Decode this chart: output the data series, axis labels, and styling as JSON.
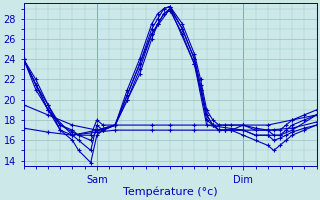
{
  "bg_color": "#cce8e8",
  "grid_color": "#9cc8c8",
  "line_color": "#0000bb",
  "xlabel": "Température (°c)",
  "xlabel_fontsize": 8,
  "tick_fontsize": 7,
  "ylim": [
    13.5,
    29.5
  ],
  "yticks": [
    14,
    16,
    18,
    20,
    22,
    24,
    26,
    28
  ],
  "xlim": [
    0,
    48
  ],
  "sam_x": 12,
  "dim_x": 36,
  "series": [
    [
      0,
      24,
      2,
      22,
      4,
      19.5,
      6,
      17,
      8,
      16,
      9,
      15,
      11,
      13.8,
      12,
      16.5,
      13,
      17,
      15,
      17.5,
      17,
      20,
      19,
      23,
      21,
      26.5,
      22,
      27.5,
      23,
      28.5,
      24,
      29.0,
      26,
      27,
      28,
      24,
      29,
      21,
      30,
      18.5,
      31,
      17.5,
      32,
      17.0,
      33,
      17.0,
      34,
      17.0,
      36,
      17.0,
      38,
      16.5,
      40,
      16.5,
      41,
      16.0,
      42,
      16.2,
      43,
      16.5,
      44,
      16.8,
      46,
      17.2,
      48,
      17.5
    ],
    [
      0,
      24,
      2,
      21.5,
      4,
      19,
      6,
      17,
      8,
      16.5,
      9,
      16,
      11,
      15,
      12,
      17.5,
      13,
      17,
      15,
      17.5,
      17,
      20.5,
      19,
      23.5,
      21,
      27,
      22,
      28,
      23,
      29,
      24,
      29.2,
      26,
      27,
      28,
      24,
      29,
      21.5,
      30,
      18.5,
      31,
      17.5,
      32,
      17.0,
      33,
      17.0,
      34,
      17.0,
      36,
      17.5,
      38,
      17.0,
      40,
      17.0,
      41,
      16.5,
      42,
      16.5,
      43,
      17.0,
      44,
      17.5,
      46,
      18.0,
      48,
      18.5
    ],
    [
      0,
      24,
      2,
      21.5,
      4,
      19.5,
      6,
      17.5,
      8,
      16.8,
      9,
      16.5,
      11,
      16.5,
      12,
      18,
      13,
      17.5,
      15,
      17.5,
      17,
      21,
      19,
      24,
      21,
      27.5,
      22,
      28.5,
      23,
      29,
      24,
      29.2,
      26,
      27.5,
      28,
      24.5,
      29,
      22,
      30,
      19,
      31,
      18,
      32,
      17.5,
      33,
      17.5,
      34,
      17.5,
      36,
      17.5,
      38,
      17.2,
      40,
      17.0,
      41,
      17.0,
      42,
      17.0,
      43,
      17.5,
      44,
      18.0,
      46,
      18.5,
      48,
      19.0
    ],
    [
      0,
      24,
      2,
      21,
      4,
      19,
      6,
      17.5,
      8,
      17,
      9,
      16.5,
      11,
      16,
      12,
      17,
      13,
      17,
      15,
      17.5,
      17,
      20,
      19,
      22.5,
      21,
      26,
      22,
      27.5,
      23,
      28.5,
      24,
      28.8,
      26,
      26.5,
      28,
      23.5,
      29,
      21,
      30,
      18,
      31,
      17.5,
      32,
      17.0,
      33,
      17.0,
      34,
      17.0,
      36,
      16.5,
      38,
      16.0,
      40,
      15.5,
      41,
      15.0,
      42,
      15.5,
      43,
      16.0,
      44,
      16.5,
      46,
      17.0,
      48,
      17.5
    ],
    [
      0,
      24,
      4,
      19,
      8,
      16.5,
      12,
      17,
      15,
      17.5,
      21,
      26.5,
      24,
      29.0,
      28,
      23.5,
      30,
      17.5,
      36,
      17.0,
      38,
      16.5,
      40,
      16.5,
      42,
      16.5,
      44,
      17.0,
      48,
      18.5
    ],
    [
      0,
      19.5,
      4,
      18.5,
      8,
      17.5,
      12,
      17,
      15,
      17.5,
      21,
      17.5,
      24,
      17.5,
      28,
      17.5,
      36,
      17.5,
      40,
      17.5,
      44,
      18,
      48,
      18.5
    ],
    [
      0,
      17.2,
      4,
      16.8,
      8,
      16.5,
      12,
      16.8,
      15,
      17.0,
      21,
      17.0,
      24,
      17.0,
      28,
      17.0,
      36,
      17.0,
      40,
      17.0,
      44,
      17.2,
      48,
      17.8
    ]
  ]
}
